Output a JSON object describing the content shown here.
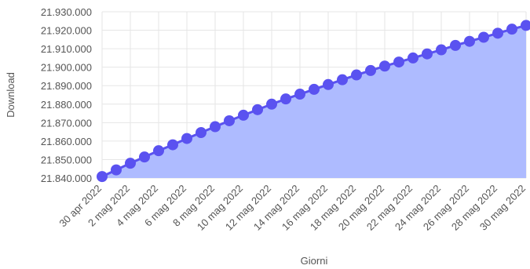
{
  "chart_data": {
    "type": "area",
    "title": "",
    "xlabel": "Giorni",
    "ylabel": "Download",
    "ylim": [
      21840000,
      21930000
    ],
    "yticks": [
      21840000,
      21850000,
      21860000,
      21870000,
      21880000,
      21890000,
      21900000,
      21910000,
      21920000,
      21930000
    ],
    "ytick_labels": [
      "21.840.000",
      "21.850.000",
      "21.860.000",
      "21.870.000",
      "21.880.000",
      "21.890.000",
      "21.900.000",
      "21.910.000",
      "21.920.000",
      "21.930.000"
    ],
    "grid": true,
    "categories": [
      "30 apr 2022",
      "1 mag 2022",
      "2 mag 2022",
      "3 mag 2022",
      "4 mag 2022",
      "5 mag 2022",
      "6 mag 2022",
      "7 mag 2022",
      "8 mag 2022",
      "9 mag 2022",
      "10 mag 2022",
      "11 mag 2022",
      "12 mag 2022",
      "13 mag 2022",
      "14 mag 2022",
      "15 mag 2022",
      "16 mag 2022",
      "17 mag 2022",
      "18 mag 2022",
      "19 mag 2022",
      "20 mag 2022",
      "21 mag 2022",
      "22 mag 2022",
      "23 mag 2022",
      "24 mag 2022",
      "25 mag 2022",
      "26 mag 2022",
      "27 mag 2022",
      "28 mag 2022",
      "29 mag 2022",
      "30 mag 2022"
    ],
    "xtick_labels": [
      "30 apr 2022",
      "2 mag 2022",
      "4 mag 2022",
      "6 mag 2022",
      "8 mag 2022",
      "10 mag 2022",
      "12 mag 2022",
      "14 mag 2022",
      "16 mag 2022",
      "18 mag 2022",
      "20 mag 2022",
      "22 mag 2022",
      "24 mag 2022",
      "26 mag 2022",
      "28 mag 2022",
      "30 mag 2022"
    ],
    "series": [
      {
        "values": [
          21840800,
          21844400,
          21848000,
          21851400,
          21854800,
          21858000,
          21861400,
          21864600,
          21867800,
          21871000,
          21874000,
          21877000,
          21880000,
          21882800,
          21885400,
          21888000,
          21890600,
          21893200,
          21895800,
          21898200,
          21900600,
          21902800,
          21905000,
          21907200,
          21909400,
          21911800,
          21914000,
          21916200,
          21918400,
          21920600,
          21922600
        ],
        "line_color": "#5a52f0",
        "marker_color": "#5a52f0",
        "fill_color": "#aebbff"
      }
    ]
  }
}
